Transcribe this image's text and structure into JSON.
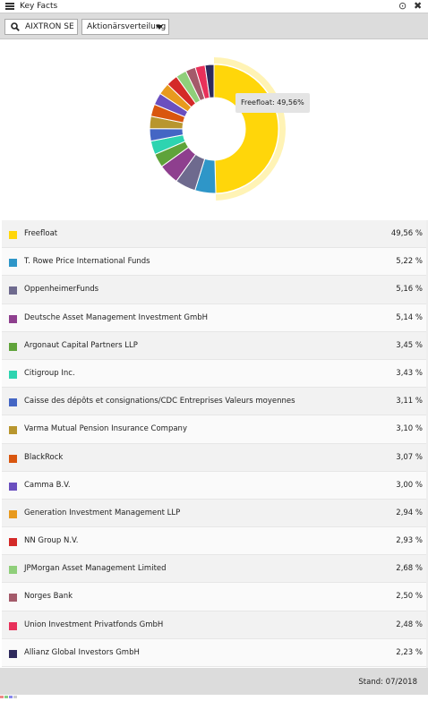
{
  "window": {
    "title": "Key Facts"
  },
  "toolbar": {
    "search_label": "AIXTRON SE",
    "select_value": "Aktionärsverteilung"
  },
  "tooltip": {
    "text": "Freefloat: 49,56%"
  },
  "footer": {
    "stand": "Stand: 07/2018"
  },
  "chart_data": {
    "type": "pie",
    "donut": true,
    "highlighted": "Freefloat",
    "categories": [
      "Freefloat",
      "T. Rowe Price International Funds",
      "OppenheimerFunds",
      "Deutsche Asset Management Investment GmbH",
      "Argonaut Capital Partners LLP",
      "Citigroup Inc.",
      "Caisse des dépôts et consignations/CDC Entreprises Valeurs moyennes",
      "Varma Mutual Pension Insurance Company",
      "BlackRock",
      "Camma B.V.",
      "Generation Investment Management LLP",
      "NN Group N.V.",
      "JPMorgan Asset Management Limited",
      "Norges Bank",
      "Union Investment Privatfonds GmbH",
      "Allianz Global Investors GmbH"
    ],
    "values": [
      49.56,
      5.22,
      5.16,
      5.14,
      3.45,
      3.43,
      3.11,
      3.1,
      3.07,
      3.0,
      2.94,
      2.93,
      2.68,
      2.5,
      2.48,
      2.23
    ],
    "labels": [
      "49,56 %",
      "5,22 %",
      "5,16 %",
      "5,14 %",
      "3,45 %",
      "3,43 %",
      "3,11 %",
      "3,10 %",
      "3,07 %",
      "3,00 %",
      "2,94 %",
      "2,93 %",
      "2,68 %",
      "2,50 %",
      "2,48 %",
      "2,23 %"
    ],
    "colors": [
      "#FFD60A",
      "#2E96C8",
      "#6E6A8E",
      "#8E3F8E",
      "#5FA33A",
      "#2DD4B0",
      "#4466C4",
      "#B8962E",
      "#D9560E",
      "#6A4FBF",
      "#E89A1E",
      "#D42A28",
      "#8FCF7A",
      "#A45A6A",
      "#E8305A",
      "#2E2A5C"
    ]
  }
}
